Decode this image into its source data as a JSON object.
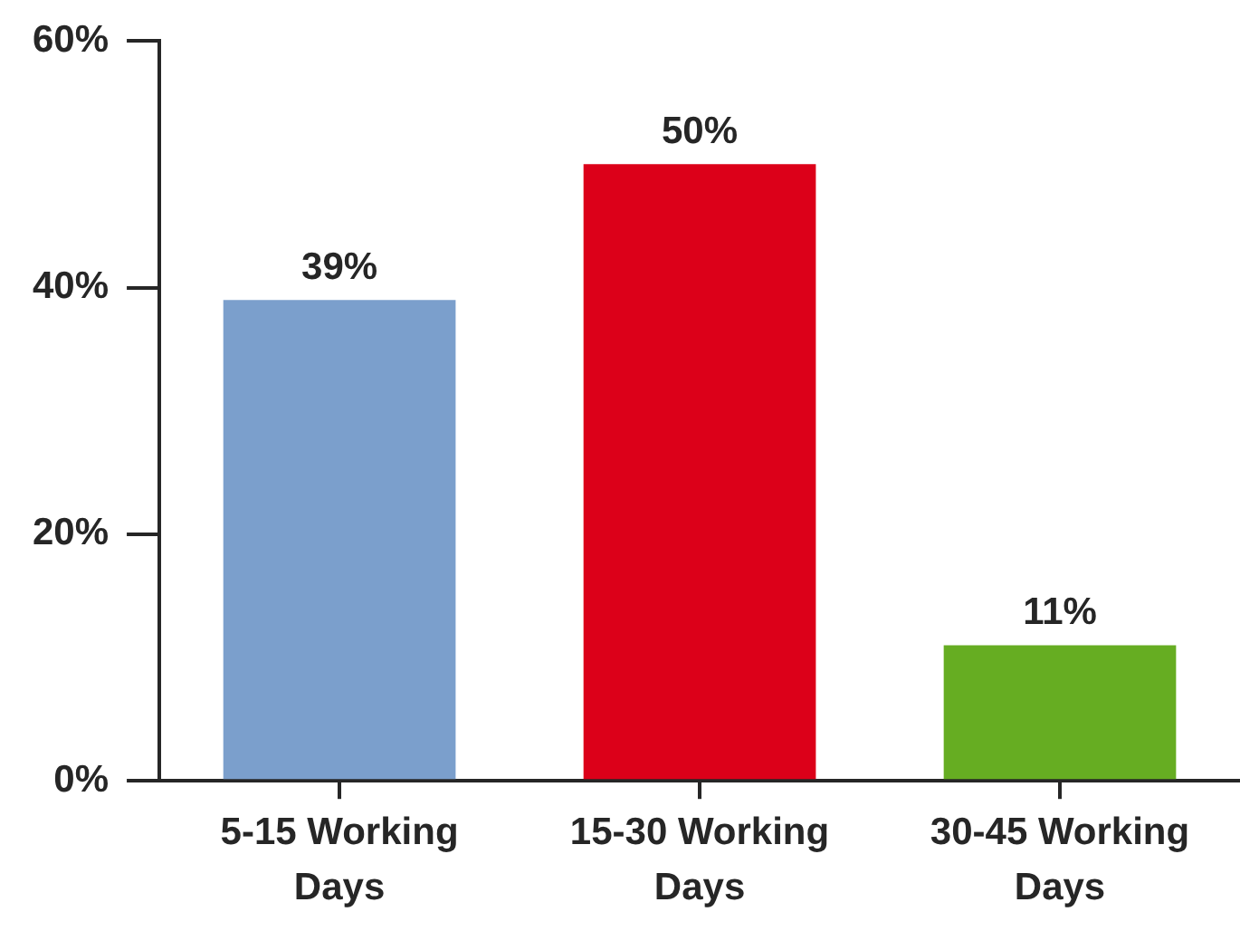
{
  "chart_data": {
    "type": "bar",
    "categories": [
      "5-15 Working Days",
      "15-30 Working Days",
      "30-45 Working Days"
    ],
    "values": [
      39,
      50,
      11
    ],
    "colors": [
      "#7b9fcc",
      "#dc0019",
      "#66ad22"
    ],
    "value_labels": [
      "39%",
      "50%",
      "11%"
    ],
    "ylim": [
      0,
      60
    ],
    "yticks": [
      {
        "value": 0,
        "label": "0%"
      },
      {
        "value": 20,
        "label": "20%"
      },
      {
        "value": 40,
        "label": "40%"
      },
      {
        "value": 60,
        "label": "60%"
      }
    ],
    "grid": false,
    "legend": false
  }
}
